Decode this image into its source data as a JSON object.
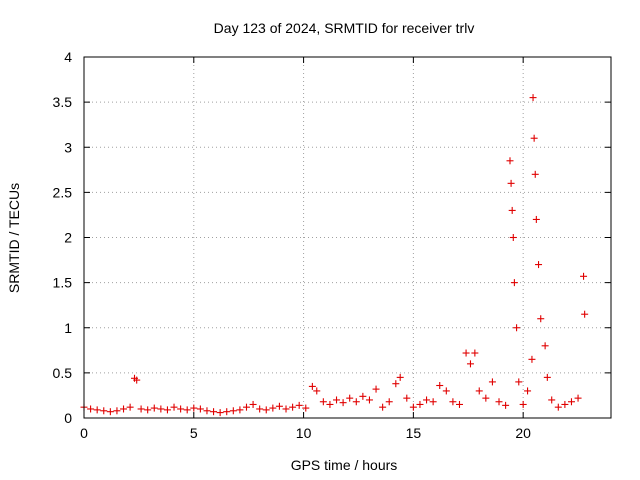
{
  "chart_data": {
    "type": "scatter",
    "title": "Day 123 of 2024, SRMTID for receiver trlv",
    "xlabel": "GPS time / hours",
    "ylabel": "SRMTID / TECUs",
    "xlim": [
      0,
      24
    ],
    "ylim": [
      0,
      4
    ],
    "xticks": [
      0,
      5,
      10,
      15,
      20
    ],
    "xtick_labels": [
      "0",
      "5",
      "10",
      "15",
      "20"
    ],
    "yticks": [
      0,
      0.5,
      1,
      1.5,
      2,
      2.5,
      3,
      3.5,
      4
    ],
    "ytick_labels": [
      "0",
      "0.5",
      "1",
      "1.5",
      "2",
      "2.5",
      "3",
      "3.5",
      "4"
    ],
    "grid": true,
    "marker": "+",
    "series_color": "#e00000",
    "series": [
      {
        "name": "SRMTID",
        "x": [
          0.0,
          0.3,
          0.6,
          0.9,
          1.2,
          1.5,
          1.8,
          2.1,
          2.3,
          2.4,
          2.6,
          2.9,
          3.2,
          3.5,
          3.8,
          4.1,
          4.4,
          4.7,
          5.0,
          5.3,
          5.6,
          5.9,
          6.2,
          6.5,
          6.8,
          7.1,
          7.4,
          7.7,
          8.0,
          8.3,
          8.6,
          8.9,
          9.2,
          9.5,
          9.8,
          10.1,
          10.4,
          10.6,
          10.9,
          11.2,
          11.5,
          11.8,
          12.1,
          12.4,
          12.7,
          13.0,
          13.3,
          13.6,
          13.9,
          14.2,
          14.4,
          14.7,
          15.0,
          15.3,
          15.6,
          15.9,
          16.2,
          16.5,
          16.8,
          17.1,
          17.4,
          17.6,
          17.8,
          18.0,
          18.3,
          18.6,
          18.9,
          19.2,
          19.4,
          19.45,
          19.5,
          19.55,
          19.6,
          19.7,
          19.8,
          20.0,
          20.2,
          20.4,
          20.45,
          20.5,
          20.55,
          20.6,
          20.7,
          20.8,
          21.0,
          21.1,
          21.3,
          21.6,
          21.9,
          22.2,
          22.5,
          22.75,
          22.8
        ],
        "y": [
          0.12,
          0.1,
          0.09,
          0.08,
          0.07,
          0.08,
          0.1,
          0.12,
          0.44,
          0.42,
          0.1,
          0.09,
          0.11,
          0.1,
          0.09,
          0.12,
          0.1,
          0.09,
          0.11,
          0.1,
          0.08,
          0.07,
          0.06,
          0.07,
          0.08,
          0.09,
          0.12,
          0.15,
          0.1,
          0.09,
          0.11,
          0.13,
          0.1,
          0.12,
          0.14,
          0.11,
          0.35,
          0.3,
          0.18,
          0.15,
          0.2,
          0.17,
          0.22,
          0.18,
          0.24,
          0.2,
          0.32,
          0.12,
          0.18,
          0.38,
          0.45,
          0.22,
          0.12,
          0.15,
          0.2,
          0.18,
          0.36,
          0.3,
          0.18,
          0.15,
          0.72,
          0.6,
          0.72,
          0.3,
          0.22,
          0.4,
          0.18,
          0.14,
          2.85,
          2.6,
          2.3,
          2.0,
          1.5,
          1.0,
          0.4,
          0.15,
          0.3,
          0.65,
          3.55,
          3.1,
          2.7,
          2.2,
          1.7,
          1.1,
          0.8,
          0.45,
          0.2,
          0.12,
          0.15,
          0.18,
          0.22,
          1.57,
          1.15
        ]
      }
    ]
  }
}
